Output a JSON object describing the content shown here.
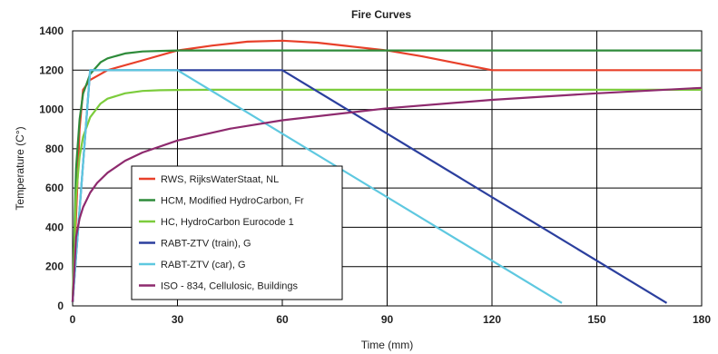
{
  "chart_data": {
    "type": "line",
    "title": "Fire Curves",
    "xlabel": "Time (mm)",
    "ylabel": "Temperature (C°)",
    "xlim": [
      0,
      180
    ],
    "ylim": [
      0,
      1400
    ],
    "xticks": [
      0,
      30,
      60,
      90,
      120,
      150,
      180
    ],
    "yticks": [
      0,
      200,
      400,
      600,
      800,
      1000,
      1200,
      1400
    ],
    "grid": true,
    "legend_position": "bottom-left",
    "series": [
      {
        "name": "RWS, RijksWaterStaat, NL",
        "color": "#e8402a",
        "x": [
          0,
          2,
          3,
          5,
          10,
          20,
          30,
          40,
          50,
          60,
          70,
          80,
          90,
          100,
          110,
          120,
          150,
          180
        ],
        "y": [
          20,
          900,
          1100,
          1150,
          1200,
          1250,
          1300,
          1325,
          1345,
          1350,
          1340,
          1320,
          1300,
          1270,
          1235,
          1200,
          1200,
          1200
        ]
      },
      {
        "name": "HCM, Modified HydroCarbon, Fr",
        "color": "#2e8b3a",
        "x": [
          0,
          1,
          2,
          3,
          5,
          8,
          10,
          15,
          20,
          25,
          30,
          40,
          60,
          90,
          120,
          150,
          180
        ],
        "y": [
          20,
          700,
          950,
          1080,
          1180,
          1240,
          1260,
          1285,
          1295,
          1298,
          1300,
          1300,
          1300,
          1300,
          1300,
          1300,
          1300
        ]
      },
      {
        "name": "HC, HydroCarbon Eurocode 1",
        "color": "#7ccc3c",
        "x": [
          0,
          1,
          2,
          3,
          5,
          8,
          10,
          15,
          20,
          25,
          30,
          40,
          60,
          90,
          120,
          150,
          180
        ],
        "y": [
          20,
          560,
          760,
          860,
          960,
          1030,
          1055,
          1082,
          1094,
          1098,
          1099,
          1100,
          1100,
          1100,
          1100,
          1100,
          1100
        ]
      },
      {
        "name": "RABT-ZTV (train), G",
        "color": "#2b3f9e",
        "x": [
          0,
          5,
          60,
          170
        ],
        "y": [
          20,
          1200,
          1200,
          15
        ]
      },
      {
        "name": "RABT-ZTV (car), G",
        "color": "#5ec8e0",
        "x": [
          0,
          5,
          30,
          140
        ],
        "y": [
          20,
          1200,
          1200,
          15
        ]
      },
      {
        "name": "ISO - 834, Cellulosic, Buildings",
        "color": "#8e2a6e",
        "x": [
          0,
          1,
          2,
          3,
          5,
          7,
          10,
          15,
          20,
          30,
          45,
          60,
          90,
          120,
          150,
          180
        ],
        "y": [
          20,
          350,
          445,
          502,
          576,
          626,
          678,
          739,
          781,
          842,
          902,
          945,
          1006,
          1049,
          1082,
          1110
        ]
      }
    ]
  }
}
